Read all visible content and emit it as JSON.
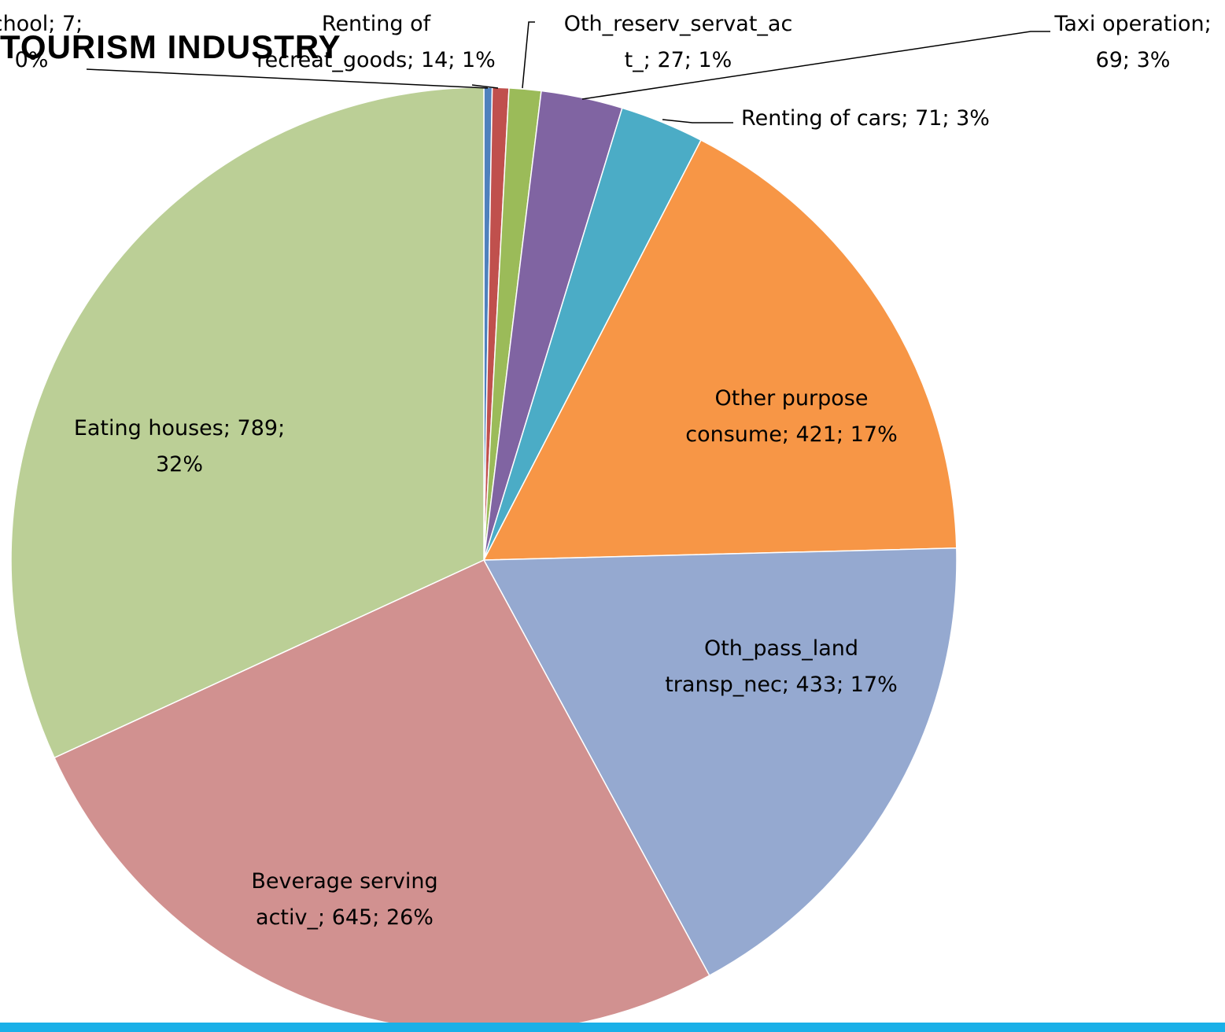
{
  "chart_data": {
    "type": "pie",
    "title": "TOURISM INDUSTRY",
    "categories": [
      "school",
      "Renting of recreat_goods",
      "Oth_reserv_servat_act_",
      "Taxi operation",
      "Renting of cars",
      "Other purpose consume",
      "Oth_pass_land transp_nec",
      "Beverage serving activ_",
      "Eating houses"
    ],
    "values": [
      7,
      14,
      27,
      69,
      71,
      421,
      433,
      645,
      789
    ],
    "percentages": [
      0,
      1,
      1,
      3,
      3,
      17,
      17,
      26,
      32
    ],
    "percentage_labels": [
      "0%",
      "1%",
      "1%",
      "3%",
      "3%",
      "17%",
      "17%",
      "26%",
      "32%"
    ],
    "label_separator": "; ",
    "colors": [
      "#4f81bd",
      "#c0504d",
      "#9bbb59",
      "#8064a2",
      "#4bacc6",
      "#f79646",
      "#95a9d0",
      "#d19190",
      "#bbcf96"
    ]
  }
}
